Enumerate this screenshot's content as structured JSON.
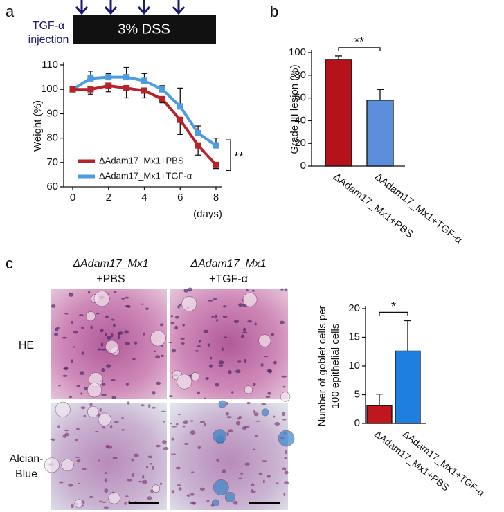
{
  "panel_labels": [
    "a",
    "b",
    "c"
  ],
  "panel_a": {
    "injection_label": [
      "TGF-α",
      "injection"
    ],
    "treatment": "3% DSS"
  },
  "panel_c": {
    "columns": [
      [
        "ΔAdam17_Mx1",
        "+PBS"
      ],
      [
        "ΔAdam17_Mx1",
        "+TGF-α"
      ]
    ],
    "rows": [
      [
        "HE"
      ],
      [
        "Alcian-",
        "Blue"
      ]
    ]
  },
  "chart_data": [
    {
      "type": "line",
      "xlabel": "(days)",
      "ylabel": "Weight (%)",
      "annotation": "**",
      "x": [
        0,
        1,
        2,
        3,
        4,
        5,
        6,
        7,
        8
      ],
      "xlim": [
        0,
        8
      ],
      "xticks": [
        0,
        2,
        4,
        6,
        8
      ],
      "ylim": [
        60,
        110
      ],
      "yticks": [
        60,
        70,
        80,
        90,
        100,
        110
      ],
      "legend": "lower left",
      "series": [
        {
          "name": "ΔAdam17_Mx1+PBS",
          "color": "#b8232a",
          "values": [
            100,
            100,
            101.5,
            100.5,
            99.5,
            96,
            87.5,
            77,
            69
          ],
          "errors": [
            1,
            2,
            2.5,
            4,
            3,
            1.5,
            6,
            4,
            1.5
          ]
        },
        {
          "name": "ΔAdam17_Mx1+TGF-α",
          "color": "#4d9be0",
          "values": [
            100,
            104.5,
            105,
            105,
            103.5,
            100,
            93,
            82,
            77
          ],
          "errors": [
            1,
            3,
            1.5,
            4,
            3,
            1.5,
            7.5,
            3,
            3
          ]
        }
      ]
    },
    {
      "type": "bar",
      "ylabel": "Grade III lesion (%)",
      "annotation": "**",
      "categories": [
        "ΔAdam17_Mx1+PBS",
        "ΔAdam17_Mx1+TGF-α"
      ],
      "values": [
        94,
        58
      ],
      "errors": [
        3,
        9.5
      ],
      "colors": [
        "#b5121b",
        "#5b8fdc"
      ],
      "ylim": [
        0,
        100
      ],
      "yticks": [
        0,
        20,
        40,
        60,
        80,
        100
      ]
    },
    {
      "type": "bar",
      "ylabel": [
        "Number of goblet cells per",
        "100 epithelial cells"
      ],
      "annotation": "*",
      "categories": [
        "ΔAdam17_Mx1+PBS",
        "ΔAdam17_Mx1+TGF-α"
      ],
      "values": [
        3.1,
        12.6
      ],
      "errors": [
        2,
        5.3
      ],
      "colors": [
        "#c0161e",
        "#1e7fe0"
      ],
      "ylim": [
        0,
        20
      ],
      "yticks": [
        0,
        5,
        10,
        15,
        20
      ]
    }
  ]
}
